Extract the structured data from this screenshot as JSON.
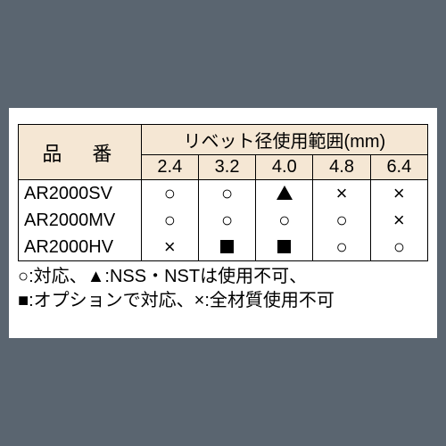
{
  "table": {
    "header_model": "品　番",
    "header_range": "リベット径使用範囲(mm)",
    "sizes": [
      "2.4",
      "3.2",
      "4.0",
      "4.8",
      "6.4"
    ],
    "rows": [
      {
        "model": "AR2000SV",
        "cells": [
          "circle",
          "circle",
          "triangle",
          "cross",
          "cross"
        ]
      },
      {
        "model": "AR2000MV",
        "cells": [
          "circle",
          "circle",
          "circle",
          "circle",
          "cross"
        ]
      },
      {
        "model": "AR2000HV",
        "cells": [
          "cross",
          "square",
          "square",
          "circle",
          "circle"
        ]
      }
    ]
  },
  "legend": {
    "line1": "○:対応、▲:NSS・NSTは使用不可、",
    "line2": "■:オプションで対応、×:全材質使用不可"
  },
  "symbols": {
    "circle": "○",
    "cross": "×"
  }
}
